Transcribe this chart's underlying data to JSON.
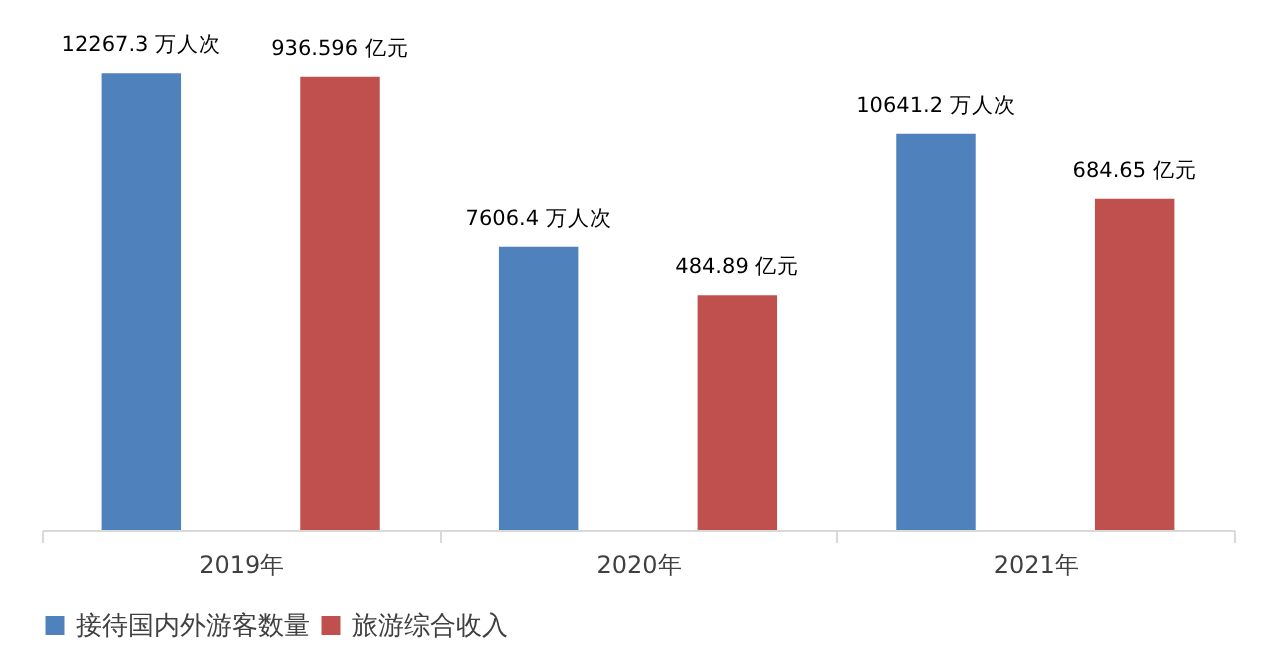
{
  "chart_data": {
    "type": "bar",
    "categories": [
      "2019年",
      "2020年",
      "2021年"
    ],
    "series": [
      {
        "name": "接待国内外游客数量",
        "color": "#4f81bd",
        "values": [
          12267.3,
          7606.4,
          10641.2
        ],
        "value_labels": [
          "12267.3 万人次",
          "7606.4 万人次",
          "10641.2 万人次"
        ]
      },
      {
        "name": "旅游综合收入",
        "color": "#c0504d",
        "axis": "y2",
        "values": [
          936.596,
          484.89,
          684.65
        ],
        "value_labels": [
          "936.596 亿元",
          "484.89 亿元",
          "684.65 亿元"
        ]
      }
    ],
    "tick_labels": "x",
    "legend": "bottom"
  }
}
